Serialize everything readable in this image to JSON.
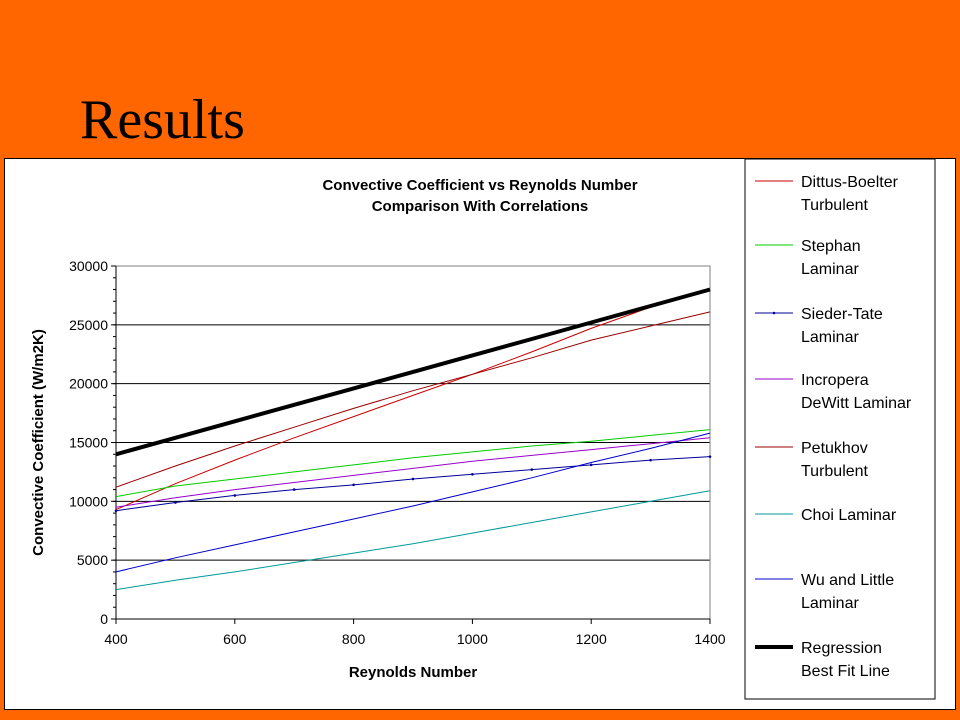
{
  "slide": {
    "title": "Results"
  },
  "chart_data": {
    "type": "line",
    "title": [
      "Convective Coefficient vs Reynolds Number",
      "Comparison With Correlations"
    ],
    "xlabel": "Reynolds Number",
    "ylabel": "Convective Coefficient (W/m2K)",
    "xlim": [
      400,
      1400
    ],
    "ylim": [
      0,
      30000
    ],
    "xticks": [
      400,
      600,
      800,
      1000,
      1200,
      1400
    ],
    "yticks": [
      0,
      5000,
      10000,
      15000,
      20000,
      25000,
      30000
    ],
    "grid": "horizontal",
    "legend_position": "right",
    "series": [
      {
        "name": [
          "Dittus-Boelter",
          "Turbulent"
        ],
        "color": "#cc0000",
        "width": 1,
        "marker": "none",
        "x": [
          400,
          500,
          600,
          700,
          800,
          900,
          1000,
          1100,
          1200,
          1300,
          1400
        ],
        "y": [
          9300,
          11500,
          13500,
          15400,
          17200,
          19000,
          20800,
          22700,
          24700,
          26500,
          28000
        ]
      },
      {
        "name": [
          "Stephan",
          "Laminar"
        ],
        "color": "#00cc00",
        "width": 1,
        "marker": "none",
        "x": [
          400,
          500,
          600,
          700,
          800,
          900,
          1000,
          1100,
          1200,
          1300,
          1400
        ],
        "y": [
          10400,
          11300,
          11900,
          12500,
          13100,
          13700,
          14200,
          14700,
          15100,
          15600,
          16100
        ]
      },
      {
        "name": [
          "Sieder-Tate",
          "Laminar"
        ],
        "color": "#000099",
        "width": 1,
        "marker": "dot",
        "x": [
          400,
          500,
          600,
          700,
          800,
          900,
          1000,
          1100,
          1200,
          1300,
          1400
        ],
        "y": [
          9200,
          9900,
          10500,
          11000,
          11400,
          11900,
          12300,
          12700,
          13100,
          13500,
          13800
        ]
      },
      {
        "name": [
          "Incropera",
          "DeWitt Laminar"
        ],
        "color": "#9900cc",
        "width": 1,
        "marker": "none",
        "x": [
          400,
          500,
          600,
          700,
          800,
          900,
          1000,
          1100,
          1200,
          1300,
          1400
        ],
        "y": [
          9500,
          10300,
          11000,
          11600,
          12200,
          12800,
          13400,
          13900,
          14400,
          14900,
          15400
        ]
      },
      {
        "name": [
          "Petukhov",
          "Turbulent"
        ],
        "color": "#990000",
        "width": 1,
        "marker": "none",
        "x": [
          400,
          500,
          600,
          700,
          800,
          900,
          1000,
          1100,
          1200,
          1300,
          1400
        ],
        "y": [
          11200,
          13000,
          14700,
          16300,
          17900,
          19400,
          20800,
          22200,
          23700,
          24900,
          26100
        ]
      },
      {
        "name": [
          "Choi Laminar"
        ],
        "color": "#009999",
        "width": 1,
        "marker": "none",
        "x": [
          400,
          500,
          600,
          700,
          800,
          900,
          1000,
          1100,
          1200,
          1300,
          1400
        ],
        "y": [
          2500,
          3300,
          4000,
          4800,
          5600,
          6400,
          7300,
          8200,
          9100,
          10000,
          10900
        ]
      },
      {
        "name": [
          "Wu and Little",
          "Laminar"
        ],
        "color": "#0000cc",
        "width": 1,
        "marker": "none",
        "x": [
          400,
          500,
          600,
          700,
          800,
          900,
          1000,
          1100,
          1200,
          1300,
          1400
        ],
        "y": [
          4000,
          5200,
          6300,
          7400,
          8500,
          9600,
          10800,
          12000,
          13300,
          14500,
          15800
        ]
      },
      {
        "name": [
          "Regression",
          "Best Fit Line"
        ],
        "color": "#000000",
        "width": 4,
        "marker": "none",
        "x": [
          400,
          500,
          600,
          700,
          800,
          900,
          1000,
          1100,
          1200,
          1300,
          1400
        ],
        "y": [
          14000,
          15400,
          16800,
          18200,
          19600,
          21000,
          22400,
          23800,
          25200,
          26600,
          28000
        ]
      }
    ]
  }
}
